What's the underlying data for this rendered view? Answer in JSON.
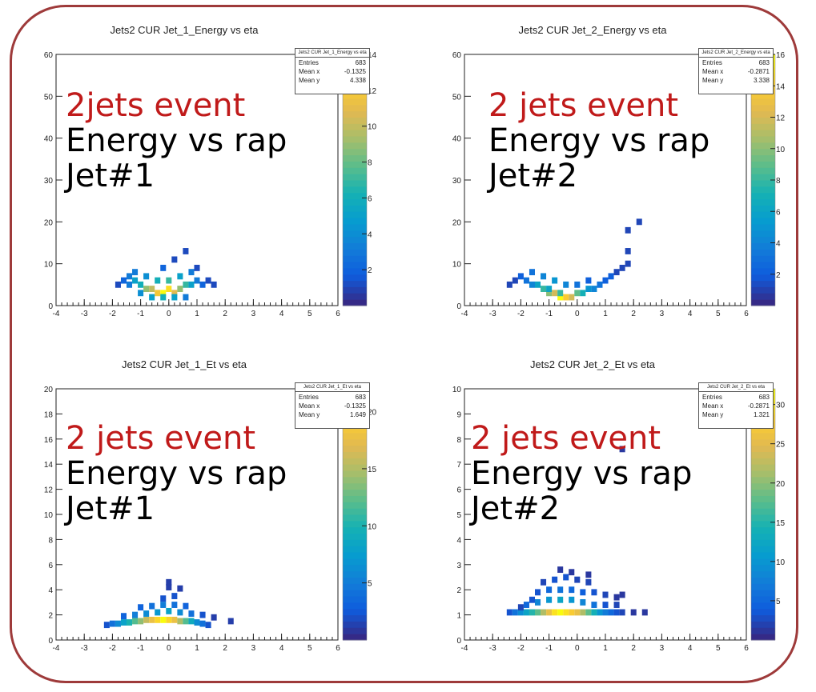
{
  "chart_data": [
    {
      "type": "heatmap",
      "title": "Jets2  CUR Jet_1_Energy vs eta",
      "stats": {
        "header": "Jets2 CUR Jet_1_Energy vs eta",
        "entries_label": "Entries",
        "entries": "683",
        "meanx_label": "Mean x",
        "meanx": "-0.1325",
        "meany_label": "Mean y",
        "meany": "4.338"
      },
      "xlim": [
        -4,
        6
      ],
      "ylim": [
        0,
        60
      ],
      "xticks": [
        "-4",
        "-3",
        "-2",
        "-1",
        "0",
        "1",
        "2",
        "3",
        "4",
        "5",
        "6"
      ],
      "yticks": [
        "0",
        "10",
        "20",
        "30",
        "40",
        "50",
        "60"
      ],
      "zticks": [
        "2",
        "4",
        "6",
        "8",
        "10",
        "12",
        "14"
      ],
      "zmax": 14,
      "xbin": 0.2,
      "ybin": 1.5,
      "points": [
        [
          -1.4,
          7,
          3
        ],
        [
          -1.2,
          6,
          5
        ],
        [
          -1,
          5,
          6
        ],
        [
          -0.8,
          4,
          9
        ],
        [
          -0.6,
          4,
          10
        ],
        [
          -0.4,
          3,
          12
        ],
        [
          -0.2,
          3,
          14
        ],
        [
          0,
          4,
          13
        ],
        [
          0.2,
          3,
          11
        ],
        [
          0.4,
          4,
          9
        ],
        [
          0.6,
          5,
          7
        ],
        [
          0.8,
          5,
          5
        ],
        [
          1,
          6,
          3
        ],
        [
          -1.6,
          6,
          2
        ],
        [
          -1.2,
          8,
          3
        ],
        [
          -0.8,
          7,
          4
        ],
        [
          -0.4,
          6,
          6
        ],
        [
          0,
          6,
          7
        ],
        [
          0.4,
          7,
          5
        ],
        [
          0.8,
          8,
          3
        ],
        [
          1.2,
          5,
          2
        ],
        [
          -1,
          3,
          4
        ],
        [
          -0.6,
          2,
          5
        ],
        [
          -0.2,
          2,
          6
        ],
        [
          0.2,
          2,
          5
        ],
        [
          0.6,
          2,
          3
        ],
        [
          1.4,
          6,
          1
        ],
        [
          -1.8,
          5,
          1
        ],
        [
          0.6,
          13,
          1
        ],
        [
          0.2,
          11,
          1
        ],
        [
          -0.2,
          9,
          2
        ],
        [
          1,
          9,
          1
        ],
        [
          1.6,
          5,
          1
        ],
        [
          -1.4,
          5,
          3
        ]
      ]
    },
    {
      "type": "heatmap",
      "title": "Jets2  CUR Jet_2_Energy vs eta",
      "stats": {
        "header": "Jets2 CUR Jet_2_Energy vs eta",
        "entries_label": "Entries",
        "entries": "683",
        "meanx_label": "Mean x",
        "meanx": "-0.2871",
        "meany_label": "Mean y",
        "meany": "3.338"
      },
      "xlim": [
        -4,
        6
      ],
      "ylim": [
        0,
        60
      ],
      "xticks": [
        "-4",
        "-3",
        "-2",
        "-1",
        "0",
        "1",
        "2",
        "3",
        "4",
        "5",
        "6"
      ],
      "yticks": [
        "0",
        "10",
        "20",
        "30",
        "40",
        "50",
        "60"
      ],
      "zticks": [
        "2",
        "4",
        "6",
        "8",
        "10",
        "12",
        "14",
        "16"
      ],
      "zmax": 16,
      "xbin": 0.2,
      "ybin": 1.5,
      "points": [
        [
          -1.8,
          6,
          3
        ],
        [
          -1.6,
          5,
          4
        ],
        [
          -1.4,
          5,
          6
        ],
        [
          -1.2,
          4,
          8
        ],
        [
          -1,
          3,
          10
        ],
        [
          -0.8,
          3,
          12
        ],
        [
          -0.6,
          2,
          16
        ],
        [
          -0.4,
          2,
          14
        ],
        [
          -0.2,
          2,
          12
        ],
        [
          0,
          3,
          9
        ],
        [
          0.2,
          3,
          7
        ],
        [
          0.4,
          4,
          5
        ],
        [
          0.6,
          4,
          4
        ],
        [
          0.8,
          5,
          3
        ],
        [
          1,
          6,
          2
        ],
        [
          1.2,
          7,
          2
        ],
        [
          1.4,
          8,
          1
        ],
        [
          -2,
          7,
          2
        ],
        [
          -1.6,
          8,
          3
        ],
        [
          -1.2,
          7,
          4
        ],
        [
          -0.8,
          6,
          5
        ],
        [
          -0.4,
          5,
          4
        ],
        [
          0,
          5,
          3
        ],
        [
          0.4,
          6,
          2
        ],
        [
          -1,
          4,
          6
        ],
        [
          -0.6,
          3,
          8
        ],
        [
          -2.2,
          6,
          1
        ],
        [
          1.6,
          9,
          1
        ],
        [
          1.8,
          10,
          1
        ],
        [
          2.2,
          20,
          1
        ],
        [
          1.8,
          18,
          1
        ],
        [
          1.8,
          13,
          1
        ],
        [
          -2.4,
          5,
          1
        ]
      ]
    },
    {
      "type": "heatmap",
      "title": "Jets2  CUR Jet_1_Et vs eta",
      "stats": {
        "header": "Jets2 CUR Jet_1_Et vs eta",
        "entries_label": "Entries",
        "entries": "683",
        "meanx_label": "Mean x",
        "meanx": "-0.1325",
        "meany_label": "Mean y",
        "meany": "1.649"
      },
      "xlim": [
        -4,
        6
      ],
      "ylim": [
        0,
        20
      ],
      "xticks": [
        "-4",
        "-3",
        "-2",
        "-1",
        "0",
        "1",
        "2",
        "3",
        "4",
        "5",
        "6"
      ],
      "yticks": [
        "0",
        "2",
        "4",
        "6",
        "8",
        "10",
        "12",
        "14",
        "16",
        "18",
        "20"
      ],
      "zticks": [
        "5",
        "10",
        "15",
        "20"
      ],
      "zmax": 22,
      "xbin": 0.2,
      "ybin": 0.5,
      "points": [
        [
          -2.2,
          1.2,
          2
        ],
        [
          -2,
          1.3,
          4
        ],
        [
          -1.8,
          1.3,
          6
        ],
        [
          -1.6,
          1.4,
          8
        ],
        [
          -1.4,
          1.4,
          10
        ],
        [
          -1.2,
          1.5,
          12
        ],
        [
          -1,
          1.5,
          14
        ],
        [
          -0.8,
          1.6,
          16
        ],
        [
          -0.6,
          1.6,
          18
        ],
        [
          -0.4,
          1.6,
          20
        ],
        [
          -0.2,
          1.6,
          22
        ],
        [
          0,
          1.6,
          20
        ],
        [
          0.2,
          1.6,
          18
        ],
        [
          0.4,
          1.5,
          15
        ],
        [
          0.6,
          1.5,
          12
        ],
        [
          0.8,
          1.5,
          9
        ],
        [
          1,
          1.4,
          6
        ],
        [
          1.2,
          1.3,
          4
        ],
        [
          1.4,
          1.2,
          2
        ],
        [
          -1.6,
          1.9,
          3
        ],
        [
          -1.2,
          2,
          5
        ],
        [
          -0.8,
          2.1,
          6
        ],
        [
          -0.4,
          2.2,
          7
        ],
        [
          0,
          2.3,
          8
        ],
        [
          0.4,
          2.2,
          6
        ],
        [
          0.8,
          2.1,
          4
        ],
        [
          1.2,
          2,
          2
        ],
        [
          -1,
          2.6,
          3
        ],
        [
          -0.6,
          2.7,
          4
        ],
        [
          -0.2,
          2.8,
          5
        ],
        [
          0.2,
          2.8,
          4
        ],
        [
          0.6,
          2.7,
          3
        ],
        [
          -0.2,
          3.3,
          2
        ],
        [
          0.2,
          3.5,
          2
        ],
        [
          0,
          4.2,
          1
        ],
        [
          0.4,
          4.1,
          1
        ],
        [
          0,
          4.6,
          1
        ],
        [
          2.2,
          1.5,
          1
        ],
        [
          1.6,
          1.8,
          1
        ]
      ]
    },
    {
      "type": "heatmap",
      "title": "Jets2  CUR Jet_2_Et vs eta",
      "stats": {
        "header": "Jets2 CUR Jet_2_Et vs eta",
        "entries_label": "Entries",
        "entries": "683",
        "meanx_label": "Mean x",
        "meanx": "-0.2871",
        "meany_label": "Mean y",
        "meany": "1.321"
      },
      "xlim": [
        -4,
        6
      ],
      "ylim": [
        0,
        10
      ],
      "xticks": [
        "-4",
        "-3",
        "-2",
        "-1",
        "0",
        "1",
        "2",
        "3",
        "4",
        "5",
        "6"
      ],
      "yticks": [
        "0",
        "1",
        "2",
        "3",
        "4",
        "5",
        "6",
        "7",
        "8",
        "9",
        "10"
      ],
      "zticks": [
        "5",
        "10",
        "15",
        "20",
        "25",
        "30"
      ],
      "zmax": 32,
      "xbin": 0.2,
      "ybin": 0.25,
      "points": [
        [
          -2.4,
          1.1,
          3
        ],
        [
          -2.2,
          1.1,
          6
        ],
        [
          -2,
          1.1,
          9
        ],
        [
          -1.8,
          1.1,
          12
        ],
        [
          -1.6,
          1.1,
          15
        ],
        [
          -1.4,
          1.1,
          18
        ],
        [
          -1.2,
          1.1,
          22
        ],
        [
          -1,
          1.1,
          26
        ],
        [
          -0.8,
          1.1,
          30
        ],
        [
          -0.6,
          1.1,
          32
        ],
        [
          -0.4,
          1.1,
          30
        ],
        [
          -0.2,
          1.1,
          28
        ],
        [
          0,
          1.1,
          26
        ],
        [
          0.2,
          1.1,
          22
        ],
        [
          0.4,
          1.1,
          18
        ],
        [
          0.6,
          1.1,
          14
        ],
        [
          0.8,
          1.1,
          10
        ],
        [
          1,
          1.1,
          7
        ],
        [
          1.2,
          1.1,
          5
        ],
        [
          1.4,
          1.1,
          3
        ],
        [
          1.6,
          1.1,
          2
        ],
        [
          -1.8,
          1.4,
          5
        ],
        [
          -1.4,
          1.5,
          8
        ],
        [
          -1,
          1.6,
          10
        ],
        [
          -0.6,
          1.6,
          12
        ],
        [
          -0.2,
          1.6,
          10
        ],
        [
          0.2,
          1.5,
          8
        ],
        [
          0.6,
          1.4,
          6
        ],
        [
          1,
          1.4,
          3
        ],
        [
          1.4,
          1.4,
          2
        ],
        [
          -1.4,
          1.9,
          3
        ],
        [
          -1,
          2,
          5
        ],
        [
          -0.6,
          2,
          6
        ],
        [
          -0.2,
          2,
          5
        ],
        [
          0.2,
          1.9,
          4
        ],
        [
          0.6,
          1.9,
          3
        ],
        [
          1,
          1.8,
          2
        ],
        [
          1.4,
          1.7,
          1
        ],
        [
          -1.2,
          2.3,
          2
        ],
        [
          -0.8,
          2.4,
          3
        ],
        [
          -0.4,
          2.5,
          3
        ],
        [
          0,
          2.4,
          2
        ],
        [
          0.4,
          2.3,
          2
        ],
        [
          1.6,
          1.8,
          1
        ],
        [
          -0.6,
          2.8,
          1
        ],
        [
          -0.2,
          2.7,
          1
        ],
        [
          0.4,
          2.6,
          1
        ],
        [
          2,
          1.1,
          1
        ],
        [
          2.4,
          1.1,
          1
        ],
        [
          1.6,
          7.6,
          1
        ],
        [
          -2,
          1.3,
          2
        ],
        [
          -1.6,
          1.6,
          3
        ]
      ]
    }
  ],
  "overlays": [
    {
      "line1": "2jets event",
      "line2": "Energy vs rap",
      "line3": "Jet#1"
    },
    {
      "line1": "2 jets event",
      "line2": "Energy vs rap",
      "line3": "Jet#2"
    },
    {
      "line1": "2 jets event",
      "line2": "Energy vs rap",
      "line3": "Jet#1"
    },
    {
      "line1": "2 jets event",
      "line2": "Energy vs rap",
      "line3": "Jet#2"
    }
  ]
}
